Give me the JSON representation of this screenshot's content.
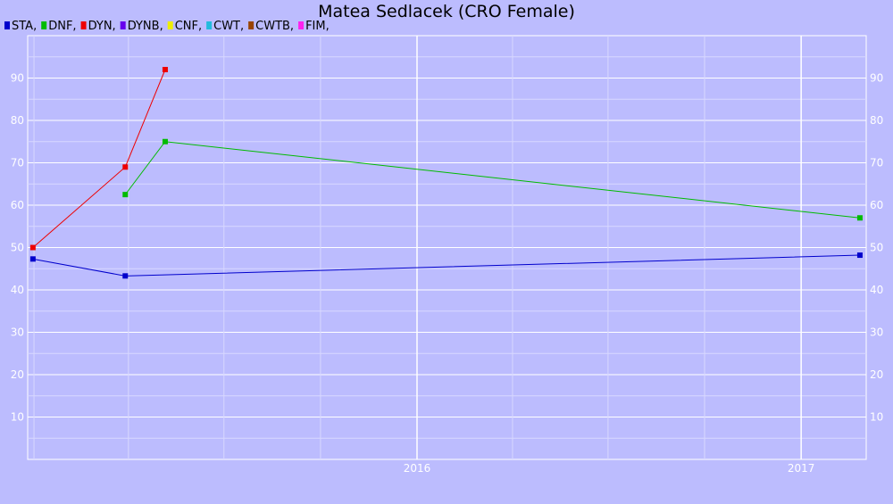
{
  "chart_data": {
    "type": "line",
    "title": "Matea Sedlacek (CRO Female)",
    "x_ticks": [
      "2016",
      "2017"
    ],
    "xlim": [
      "2014-12-26",
      "2017-03-04"
    ],
    "ylim": [
      0,
      100
    ],
    "y_ticks": [
      10,
      20,
      30,
      40,
      50,
      60,
      70,
      80,
      90
    ],
    "grid": true,
    "legend_position": "top-left",
    "series": [
      {
        "name": "STA,",
        "color": "#0000cc",
        "points": [
          {
            "date": "2014-12-31",
            "value": 47.3
          },
          {
            "date": "2015-03-29",
            "value": 43.3
          },
          {
            "date": "2017-02-26",
            "value": 48.2
          }
        ]
      },
      {
        "name": "DNF,",
        "color": "#00bb00",
        "points": [
          {
            "date": "2015-03-29",
            "value": 62.5
          },
          {
            "date": "2015-05-06",
            "value": 75.0
          },
          {
            "date": "2017-02-26",
            "value": 57.0
          }
        ]
      },
      {
        "name": "DYN,",
        "color": "#ee0000",
        "points": [
          {
            "date": "2014-12-31",
            "value": 50.0
          },
          {
            "date": "2015-03-29",
            "value": 69.0
          },
          {
            "date": "2015-05-06",
            "value": 92.0
          }
        ]
      },
      {
        "name": "DYNB,",
        "color": "#6600ee",
        "points": []
      },
      {
        "name": "CNF,",
        "color": "#eeee00",
        "points": []
      },
      {
        "name": "CWT,",
        "color": "#22bbdd",
        "points": []
      },
      {
        "name": "CWTB,",
        "color": "#994400",
        "points": []
      },
      {
        "name": "FIM,",
        "color": "#ff22ee",
        "points": []
      }
    ]
  }
}
